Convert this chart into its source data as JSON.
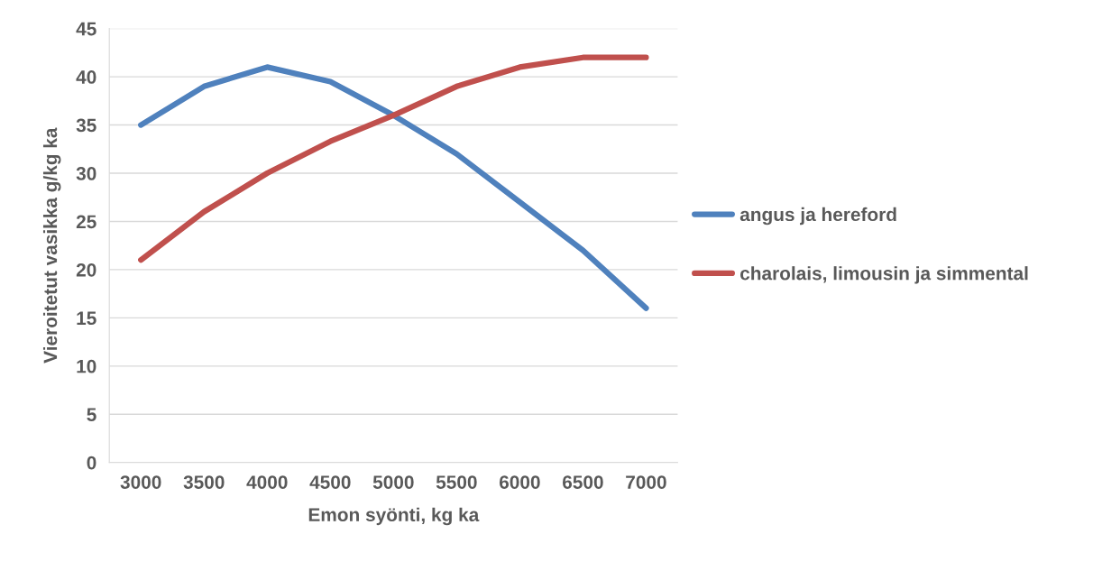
{
  "chart_data": {
    "type": "line",
    "xlabel": "Emon syönti, kg ka",
    "ylabel": "Vieroitetut vasikka g/kg ka",
    "categories": [
      "3000",
      "3500",
      "4000",
      "4500",
      "5000",
      "5500",
      "6000",
      "6500",
      "7000"
    ],
    "series": [
      {
        "name": "angus ja hereford",
        "color": "#4f81bd",
        "values": [
          35,
          39,
          41,
          39.5,
          36,
          32,
          27,
          22,
          16
        ]
      },
      {
        "name": "charolais, limousin ja simmental",
        "color": "#c0504d",
        "values": [
          21,
          26,
          30,
          33.3,
          36,
          39,
          41,
          42,
          42
        ]
      }
    ],
    "ylim": [
      0,
      45
    ],
    "yticks": [
      0,
      5,
      10,
      15,
      20,
      25,
      30,
      35,
      40,
      45
    ],
    "grid": "y",
    "legend": "right",
    "marker": "none",
    "line_style": "solid"
  }
}
